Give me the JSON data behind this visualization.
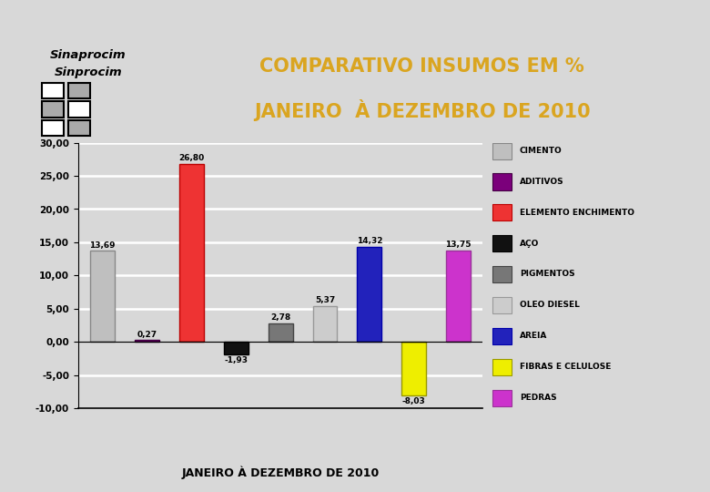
{
  "title_line1": "COMPARATIVO INSUMOS EM %",
  "title_line2": "JANEIRO  À DEZEMBRO DE 2010",
  "title_color": "#DAA520",
  "xlabel": "JANEIRO À DEZEMBRO DE 2010",
  "values": [
    13.69,
    0.27,
    26.8,
    -1.93,
    2.78,
    5.37,
    14.32,
    -8.03,
    13.75
  ],
  "bar_colors": [
    "#BFBFBF",
    "#7B007B",
    "#EE3333",
    "#111111",
    "#777777",
    "#CCCCCC",
    "#2222BB",
    "#EEEE00",
    "#CC33CC"
  ],
  "bar_edge_colors": [
    "#888888",
    "#440044",
    "#BB0000",
    "#000000",
    "#444444",
    "#999999",
    "#0000AA",
    "#999900",
    "#993399"
  ],
  "legend_labels": [
    "CIMENTO",
    "ADITIVOS",
    "ELEMENTO ENCHIMENTO",
    "AÇO",
    "PIGMENTOS",
    "OLEO DIESEL",
    "AREIA",
    "FIBRAS E CELULOSE",
    "PEDRAS"
  ],
  "legend_colors": [
    "#BFBFBF",
    "#7B007B",
    "#EE3333",
    "#111111",
    "#777777",
    "#CCCCCC",
    "#2222BB",
    "#EEEE00",
    "#CC33CC"
  ],
  "legend_edge_colors": [
    "#888888",
    "#440044",
    "#BB0000",
    "#000000",
    "#444444",
    "#999999",
    "#0000AA",
    "#999900",
    "#993399"
  ],
  "ylim": [
    -10,
    30
  ],
  "yticks": [
    -10,
    -5,
    0,
    5,
    10,
    15,
    20,
    25,
    30
  ],
  "ytick_labels": [
    "-10,00",
    "-5,00",
    "0,00",
    "5,00",
    "10,00",
    "15,00",
    "20,00",
    "25,00",
    "30,00"
  ],
  "bg_color": "#D8D8D8",
  "grid_color": "#FFFFFF",
  "value_labels": [
    "13,69",
    "0,27",
    "26,80",
    "-1,93",
    "2,78",
    "5,37",
    "14,32",
    "-8,03",
    "13,75"
  ],
  "logo_text1": "Sinaprocim",
  "logo_text2": "Sinprocim",
  "header_color": "#888888",
  "bottom_bar_color": "#AAAAAA"
}
